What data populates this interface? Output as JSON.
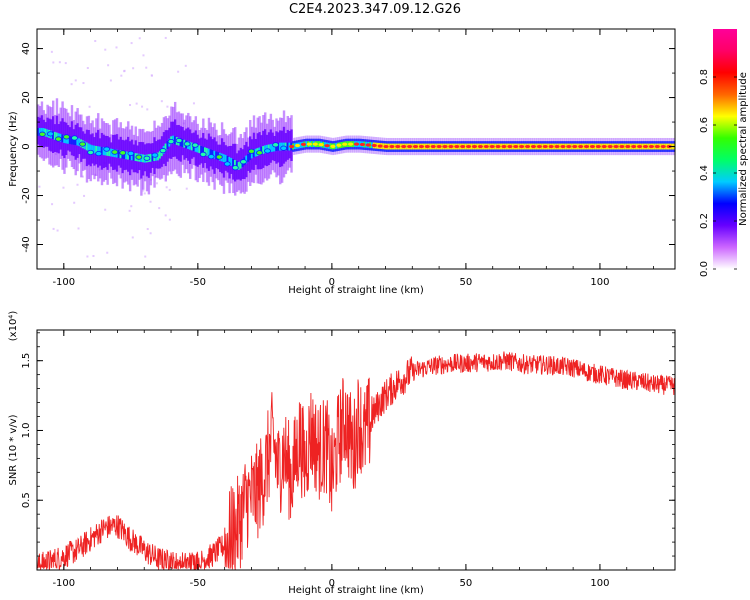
{
  "title": "C2E4.2023.347.09.12.G26",
  "chart_data": [
    {
      "type": "heatmap",
      "title": "",
      "xlabel": "Height of straight line (km)",
      "ylabel": "Frequency (Hz)",
      "xlim": [
        -110,
        128
      ],
      "ylim": [
        -50,
        48
      ],
      "xticks": [
        -100,
        -50,
        0,
        50,
        100
      ],
      "yticks": [
        -40,
        -20,
        0,
        20,
        40
      ],
      "colorbar": {
        "label": "Normalized spectral amplitude",
        "range": [
          0,
          1
        ],
        "ticks": [
          0.0,
          0.2,
          0.4,
          0.6,
          0.8
        ],
        "tick_labels": [
          "0.0",
          "0.2",
          "0.4",
          "0.6",
          "0.8"
        ],
        "colormap": [
          "#ffffff",
          "#cc66ff",
          "#6600ff",
          "#0000ff",
          "#00ccff",
          "#00ff66",
          "#33ff00",
          "#ffff00",
          "#ff6600",
          "#ff0000",
          "#ff0066",
          "#ff0099"
        ]
      },
      "ridge_points": [
        {
          "x": -108,
          "y": 6
        },
        {
          "x": -100,
          "y": 3
        },
        {
          "x": -95,
          "y": 2
        },
        {
          "x": -90,
          "y": -1
        },
        {
          "x": -85,
          "y": -2
        },
        {
          "x": -80,
          "y": -3
        },
        {
          "x": -75,
          "y": -4
        },
        {
          "x": -70,
          "y": -5
        },
        {
          "x": -65,
          "y": -4
        },
        {
          "x": -60,
          "y": 3
        },
        {
          "x": -55,
          "y": 1
        },
        {
          "x": -50,
          "y": -1
        },
        {
          "x": -45,
          "y": -3
        },
        {
          "x": -40,
          "y": -5
        },
        {
          "x": -35,
          "y": -8
        },
        {
          "x": -30,
          "y": -3
        },
        {
          "x": -25,
          "y": -1
        },
        {
          "x": -20,
          "y": 0
        },
        {
          "x": -15,
          "y": 0
        },
        {
          "x": -10,
          "y": 1
        },
        {
          "x": -5,
          "y": 1
        },
        {
          "x": 0,
          "y": 0
        },
        {
          "x": 5,
          "y": 1
        },
        {
          "x": 10,
          "y": 1
        },
        {
          "x": 20,
          "y": 0
        },
        {
          "x": 40,
          "y": 0
        },
        {
          "x": 60,
          "y": 0
        },
        {
          "x": 80,
          "y": 0
        },
        {
          "x": 100,
          "y": 0
        },
        {
          "x": 128,
          "y": 0
        }
      ]
    },
    {
      "type": "line",
      "title": "",
      "xlabel": "Height of straight line (km)",
      "ylabel": "SNR (10 * v/v)",
      "y_multiplier_label": "(x10⁴)",
      "xlim": [
        -110,
        128
      ],
      "ylim": [
        0,
        1.72
      ],
      "xticks": [
        -100,
        -50,
        0,
        50,
        100
      ],
      "yticks": [
        0.5,
        1.0,
        1.5
      ],
      "ytick_labels": [
        "0.5",
        "1.0",
        "1.5"
      ],
      "series": [
        {
          "color": "#ee2222",
          "x": [
            -110,
            -105,
            -100,
            -95,
            -90,
            -85,
            -80,
            -75,
            -70,
            -65,
            -60,
            -55,
            -50,
            -45,
            -40,
            -35,
            -32,
            -28,
            -25,
            -22,
            -20,
            -18,
            -15,
            -12,
            -10,
            -8,
            -5,
            -2,
            0,
            2,
            5,
            8,
            10,
            12,
            15,
            18,
            20,
            25,
            30,
            35,
            40,
            45,
            50,
            55,
            60,
            65,
            70,
            75,
            80,
            85,
            90,
            95,
            100,
            105,
            110,
            115,
            120,
            128
          ],
          "y": [
            0.03,
            0.06,
            0.1,
            0.14,
            0.22,
            0.3,
            0.32,
            0.22,
            0.14,
            0.08,
            0.05,
            0.04,
            0.06,
            0.1,
            0.18,
            0.32,
            0.5,
            0.55,
            0.7,
            0.95,
            0.7,
            0.85,
            0.65,
            0.95,
            0.75,
            1.0,
            0.85,
            0.9,
            0.65,
            0.9,
            1.1,
            0.85,
            1.1,
            0.95,
            1.1,
            1.2,
            1.25,
            1.35,
            1.42,
            1.45,
            1.47,
            1.48,
            1.48,
            1.49,
            1.49,
            1.5,
            1.48,
            1.47,
            1.47,
            1.46,
            1.45,
            1.42,
            1.4,
            1.38,
            1.36,
            1.35,
            1.33,
            1.32
          ]
        }
      ]
    }
  ]
}
